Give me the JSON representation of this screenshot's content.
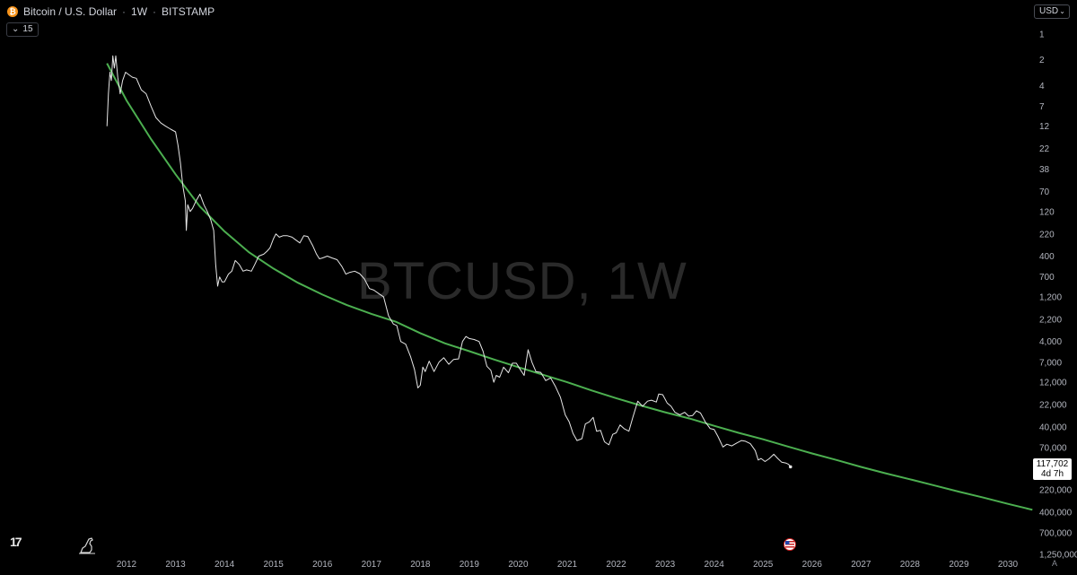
{
  "header": {
    "symbol_title": "Bitcoin / U.S. Dollar",
    "interval": "1W",
    "exchange": "BITSTAMP",
    "coin_badge": "₿",
    "indicator_value": "15"
  },
  "currency": "USD",
  "price_label": {
    "price": "117,702",
    "countdown": "4d 7h"
  },
  "watermark": "BTCUSD, 1W",
  "tv_logo": "17",
  "auto_label": "A",
  "colors": {
    "background": "#000000",
    "price_line": "#e6e6e6",
    "fit_curve": "#4caf50",
    "watermark": "#2a2a2a",
    "btc_badge": "#f7931a"
  },
  "icons": {
    "tv_logo": "tradingview-logo-icon",
    "dino": "dino-icon",
    "flag": "us-flag-icon",
    "dropdown": "chevron-down-icon"
  },
  "chart_data": {
    "type": "line",
    "scale": "log",
    "y_inverted": true,
    "grid": false,
    "x_ticks": [
      "2012",
      "2013",
      "2014",
      "2015",
      "2016",
      "2017",
      "2018",
      "2019",
      "2020",
      "2021",
      "2022",
      "2023",
      "2024",
      "2025",
      "2026",
      "2027",
      "2028",
      "2029",
      "2030"
    ],
    "y_ticks": [
      "1",
      "2",
      "4",
      "7",
      "12",
      "22",
      "38",
      "70",
      "120",
      "220",
      "400",
      "700",
      "1,200",
      "2,200",
      "4,000",
      "7,000",
      "12,000",
      "22,000",
      "40,000",
      "70,000",
      "220,000",
      "400,000",
      "700,000",
      "1,250,000"
    ],
    "xlim": [
      2011.4,
      2030.5
    ],
    "ylim": [
      0.7,
      1800000
    ],
    "series": [
      {
        "values": [
          [
            2011.6,
            12
          ],
          [
            2011.63,
            5
          ],
          [
            2011.66,
            2.8
          ],
          [
            2011.69,
            3.5
          ],
          [
            2011.72,
            1.8
          ],
          [
            2011.75,
            2.5
          ],
          [
            2011.78,
            1.8
          ],
          [
            2011.82,
            3.2
          ],
          [
            2011.87,
            5
          ],
          [
            2011.92,
            3.5
          ],
          [
            2011.98,
            2.8
          ],
          [
            2012.05,
            3.0
          ],
          [
            2012.12,
            3.2
          ],
          [
            2012.2,
            3.3
          ],
          [
            2012.3,
            4.5
          ],
          [
            2012.4,
            5.0
          ],
          [
            2012.5,
            7.0
          ],
          [
            2012.6,
            9.5
          ],
          [
            2012.7,
            11
          ],
          [
            2012.8,
            12
          ],
          [
            2012.9,
            13
          ],
          [
            2013.0,
            14
          ],
          [
            2013.05,
            20
          ],
          [
            2013.1,
            32
          ],
          [
            2013.15,
            60
          ],
          [
            2013.2,
            90
          ],
          [
            2013.22,
            200
          ],
          [
            2013.25,
            100
          ],
          [
            2013.3,
            120
          ],
          [
            2013.35,
            110
          ],
          [
            2013.42,
            90
          ],
          [
            2013.5,
            75
          ],
          [
            2013.58,
            100
          ],
          [
            2013.65,
            120
          ],
          [
            2013.72,
            150
          ],
          [
            2013.78,
            200
          ],
          [
            2013.82,
            500
          ],
          [
            2013.86,
            900
          ],
          [
            2013.9,
            700
          ],
          [
            2013.95,
            800
          ],
          [
            2014.0,
            800
          ],
          [
            2014.08,
            650
          ],
          [
            2014.15,
            600
          ],
          [
            2014.22,
            450
          ],
          [
            2014.3,
            500
          ],
          [
            2014.38,
            600
          ],
          [
            2014.45,
            580
          ],
          [
            2014.55,
            600
          ],
          [
            2014.62,
            500
          ],
          [
            2014.7,
            400
          ],
          [
            2014.8,
            380
          ],
          [
            2014.87,
            350
          ],
          [
            2014.93,
            320
          ],
          [
            2015.0,
            250
          ],
          [
            2015.05,
            220
          ],
          [
            2015.12,
            240
          ],
          [
            2015.2,
            230
          ],
          [
            2015.28,
            230
          ],
          [
            2015.38,
            240
          ],
          [
            2015.46,
            260
          ],
          [
            2015.54,
            280
          ],
          [
            2015.62,
            230
          ],
          [
            2015.7,
            235
          ],
          [
            2015.8,
            300
          ],
          [
            2015.88,
            380
          ],
          [
            2015.94,
            430
          ],
          [
            2016.0,
            420
          ],
          [
            2016.1,
            400
          ],
          [
            2016.2,
            420
          ],
          [
            2016.3,
            440
          ],
          [
            2016.4,
            530
          ],
          [
            2016.48,
            650
          ],
          [
            2016.56,
            620
          ],
          [
            2016.66,
            600
          ],
          [
            2016.76,
            640
          ],
          [
            2016.86,
            740
          ],
          [
            2016.96,
            960
          ],
          [
            2017.05,
            1000
          ],
          [
            2017.15,
            1100
          ],
          [
            2017.25,
            1200
          ],
          [
            2017.35,
            2000
          ],
          [
            2017.45,
            2500
          ],
          [
            2017.52,
            2600
          ],
          [
            2017.6,
            4000
          ],
          [
            2017.7,
            4300
          ],
          [
            2017.8,
            6000
          ],
          [
            2017.88,
            8500
          ],
          [
            2017.95,
            14000
          ],
          [
            2018.0,
            13000
          ],
          [
            2018.05,
            8000
          ],
          [
            2018.1,
            9000
          ],
          [
            2018.18,
            6800
          ],
          [
            2018.28,
            9000
          ],
          [
            2018.38,
            7000
          ],
          [
            2018.48,
            6200
          ],
          [
            2018.58,
            7400
          ],
          [
            2018.68,
            6500
          ],
          [
            2018.78,
            6400
          ],
          [
            2018.86,
            4000
          ],
          [
            2018.93,
            3500
          ],
          [
            2019.0,
            3700
          ],
          [
            2019.1,
            3800
          ],
          [
            2019.2,
            4000
          ],
          [
            2019.28,
            5200
          ],
          [
            2019.36,
            7800
          ],
          [
            2019.44,
            8700
          ],
          [
            2019.5,
            12000
          ],
          [
            2019.55,
            10000
          ],
          [
            2019.62,
            10500
          ],
          [
            2019.7,
            8000
          ],
          [
            2019.8,
            9300
          ],
          [
            2019.88,
            7200
          ],
          [
            2019.96,
            7200
          ],
          [
            2020.04,
            8500
          ],
          [
            2020.12,
            10000
          ],
          [
            2020.2,
            5000
          ],
          [
            2020.28,
            7000
          ],
          [
            2020.36,
            9000
          ],
          [
            2020.46,
            9200
          ],
          [
            2020.56,
            11500
          ],
          [
            2020.66,
            10700
          ],
          [
            2020.76,
            13500
          ],
          [
            2020.86,
            18000
          ],
          [
            2020.96,
            29000
          ],
          [
            2021.04,
            35000
          ],
          [
            2021.12,
            48000
          ],
          [
            2021.2,
            58000
          ],
          [
            2021.3,
            55000
          ],
          [
            2021.37,
            37000
          ],
          [
            2021.45,
            35000
          ],
          [
            2021.53,
            31000
          ],
          [
            2021.6,
            45000
          ],
          [
            2021.68,
            44000
          ],
          [
            2021.76,
            60000
          ],
          [
            2021.85,
            65000
          ],
          [
            2021.93,
            49000
          ],
          [
            2022.0,
            47000
          ],
          [
            2022.08,
            38000
          ],
          [
            2022.16,
            42000
          ],
          [
            2022.26,
            45000
          ],
          [
            2022.34,
            31000
          ],
          [
            2022.44,
            20000
          ],
          [
            2022.54,
            23000
          ],
          [
            2022.64,
            20000
          ],
          [
            2022.72,
            19500
          ],
          [
            2022.82,
            20500
          ],
          [
            2022.87,
            16500
          ],
          [
            2022.95,
            16800
          ],
          [
            2023.04,
            21000
          ],
          [
            2023.12,
            23000
          ],
          [
            2023.2,
            27000
          ],
          [
            2023.3,
            29000
          ],
          [
            2023.4,
            27000
          ],
          [
            2023.48,
            30000
          ],
          [
            2023.56,
            29500
          ],
          [
            2023.64,
            26000
          ],
          [
            2023.72,
            27500
          ],
          [
            2023.82,
            35000
          ],
          [
            2023.92,
            42000
          ],
          [
            2024.0,
            43000
          ],
          [
            2024.08,
            52000
          ],
          [
            2024.18,
            69000
          ],
          [
            2024.26,
            64000
          ],
          [
            2024.36,
            67000
          ],
          [
            2024.46,
            62000
          ],
          [
            2024.56,
            58000
          ],
          [
            2024.64,
            59000
          ],
          [
            2024.74,
            63000
          ],
          [
            2024.84,
            76000
          ],
          [
            2024.9,
            98000
          ],
          [
            2024.96,
            94000
          ],
          [
            2025.04,
            102000
          ],
          [
            2025.12,
            95000
          ],
          [
            2025.22,
            84000
          ],
          [
            2025.3,
            94000
          ],
          [
            2025.38,
            104000
          ],
          [
            2025.46,
            106000
          ],
          [
            2025.52,
            110000
          ],
          [
            2025.56,
            117702
          ]
        ]
      }
    ],
    "fit_curve": [
      [
        2011.6,
        2.2
      ],
      [
        2012.0,
        6.0
      ],
      [
        2012.5,
        17
      ],
      [
        2013.0,
        44
      ],
      [
        2013.5,
        105
      ],
      [
        2014.0,
        205
      ],
      [
        2014.5,
        360
      ],
      [
        2015.0,
        560
      ],
      [
        2015.5,
        820
      ],
      [
        2016.0,
        1130
      ],
      [
        2016.5,
        1500
      ],
      [
        2017.0,
        1900
      ],
      [
        2017.5,
        2350
      ],
      [
        2018.0,
        3200
      ],
      [
        2018.5,
        4200
      ],
      [
        2019.0,
        5200
      ],
      [
        2019.5,
        6500
      ],
      [
        2020.0,
        8000
      ],
      [
        2020.5,
        9800
      ],
      [
        2021.0,
        12000
      ],
      [
        2021.5,
        15000
      ],
      [
        2022.0,
        18500
      ],
      [
        2022.5,
        22500
      ],
      [
        2023.0,
        27000
      ],
      [
        2023.5,
        32000
      ],
      [
        2024.0,
        39000
      ],
      [
        2024.5,
        47000
      ],
      [
        2025.0,
        56000
      ],
      [
        2025.5,
        68000
      ],
      [
        2026.0,
        82000
      ],
      [
        2026.5,
        98000
      ],
      [
        2027.0,
        118000
      ],
      [
        2027.5,
        140000
      ],
      [
        2028.0,
        165000
      ],
      [
        2028.5,
        195000
      ],
      [
        2029.0,
        230000
      ],
      [
        2029.5,
        270000
      ],
      [
        2030.0,
        320000
      ],
      [
        2030.5,
        375000
      ]
    ]
  }
}
